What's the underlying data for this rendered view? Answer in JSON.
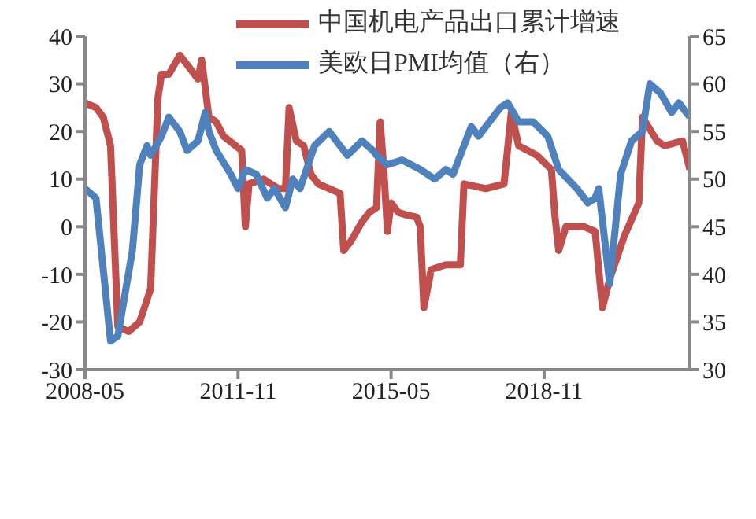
{
  "chart_data": {
    "type": "line",
    "xlim": [
      "2008-05",
      "2022-03"
    ],
    "xticks": [
      "2008-05",
      "2011-11",
      "2015-05",
      "2018-11"
    ],
    "ylim": [
      -30,
      40
    ],
    "yticks": [
      -30,
      -20,
      -10,
      0,
      10,
      20,
      30,
      40
    ],
    "y2lim": [
      30,
      65
    ],
    "y2ticks": [
      30,
      35,
      40,
      45,
      50,
      55,
      60,
      65
    ],
    "legend": "top",
    "marker": "none",
    "line_style": "solid",
    "series": [
      {
        "name": "中国机电产品出口累计增速",
        "color": "#c0504d",
        "axis": "y",
        "x": [
          "2008-05",
          "2008-08",
          "2008-10",
          "2008-12",
          "2009-02",
          "2009-05",
          "2009-08",
          "2009-11",
          "2010-01",
          "2010-02",
          "2010-04",
          "2010-07",
          "2010-09",
          "2010-12",
          "2011-01",
          "2011-03",
          "2011-05",
          "2011-07",
          "2011-12",
          "2012-01",
          "2012-02",
          "2012-06",
          "2012-10",
          "2012-12",
          "2013-01",
          "2013-03",
          "2013-05",
          "2013-07",
          "2013-09",
          "2013-12",
          "2014-03",
          "2014-04",
          "2014-06",
          "2014-09",
          "2014-11",
          "2015-01",
          "2015-02",
          "2015-03",
          "2015-04",
          "2015-05",
          "2015-07",
          "2015-09",
          "2015-12",
          "2016-01",
          "2016-02",
          "2016-04",
          "2016-08",
          "2016-12",
          "2017-01",
          "2017-07",
          "2017-12",
          "2018-02",
          "2018-04",
          "2018-09",
          "2019-01",
          "2019-02",
          "2019-03",
          "2019-05",
          "2019-10",
          "2020-01",
          "2020-03",
          "2020-05",
          "2020-09",
          "2021-01",
          "2021-02",
          "2021-06",
          "2021-08",
          "2022-01",
          "2022-03"
        ],
        "values": [
          26,
          25,
          23,
          17,
          -21,
          -22,
          -20,
          -13,
          27,
          32,
          32,
          36,
          34,
          31,
          35,
          23,
          22,
          19,
          16,
          0,
          9,
          10,
          8,
          8,
          25,
          18,
          17,
          11,
          9,
          8,
          7,
          -5,
          -3,
          1,
          3,
          4,
          22,
          12,
          -1,
          5,
          3,
          2.5,
          2,
          0,
          -17,
          -9,
          -8,
          -8,
          9,
          8,
          9,
          24,
          17,
          15,
          12,
          2,
          -5,
          0,
          0,
          -1,
          -17,
          -11,
          -2,
          5,
          23,
          18,
          17,
          18,
          12
        ]
      },
      {
        "name": "美欧日PMI均值（右）",
        "color": "#4f81bd",
        "axis": "y2",
        "x": [
          "2008-05",
          "2008-08",
          "2008-12",
          "2009-02",
          "2009-06",
          "2009-08",
          "2009-10",
          "2009-11",
          "2010-02",
          "2010-04",
          "2010-07",
          "2010-09",
          "2010-12",
          "2011-02",
          "2011-03",
          "2011-05",
          "2011-09",
          "2011-11",
          "2012-01",
          "2012-04",
          "2012-07",
          "2012-09",
          "2012-12",
          "2013-02",
          "2013-04",
          "2013-08",
          "2013-12",
          "2014-05",
          "2014-09",
          "2014-12",
          "2015-01",
          "2015-04",
          "2015-08",
          "2016-01",
          "2016-05",
          "2016-08",
          "2016-10",
          "2017-03",
          "2017-05",
          "2017-07",
          "2017-11",
          "2018-01",
          "2018-04",
          "2018-08",
          "2018-12",
          "2019-03",
          "2019-08",
          "2019-11",
          "2020-01",
          "2020-02",
          "2020-05",
          "2020-08",
          "2020-11",
          "2021-02",
          "2021-04",
          "2021-07",
          "2021-10",
          "2021-12",
          "2022-03"
        ],
        "values": [
          49,
          48,
          33,
          33.5,
          42.5,
          51.5,
          53.5,
          52.5,
          54.5,
          56.5,
          55,
          53,
          54,
          57,
          55,
          53,
          50.5,
          49,
          51,
          50.5,
          48,
          49,
          47,
          50,
          49,
          53.5,
          55,
          52.5,
          54,
          53,
          52.5,
          51.5,
          52,
          51,
          50,
          51,
          50.5,
          55.5,
          54.5,
          55.5,
          57.5,
          58,
          56,
          56,
          54.5,
          51,
          49,
          47.5,
          48,
          49,
          39,
          50.5,
          54,
          55,
          60,
          59,
          57,
          58,
          56.5
        ]
      }
    ]
  }
}
